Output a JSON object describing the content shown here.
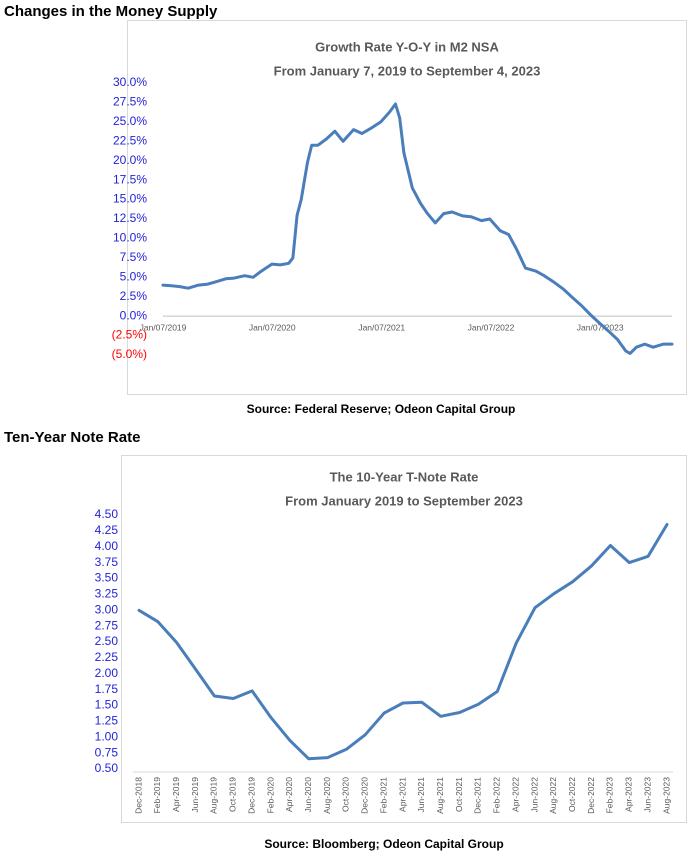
{
  "chart_data": [
    {
      "type": "line",
      "heading": "Changes in the Money Supply",
      "title": "Growth Rate Y-O-Y in M2 NSA",
      "subtitle": "From January 7, 2019 to September 4, 2023",
      "source": "Source: Federal Reserve; Odeon Capital Group",
      "color": "#4a7ebb",
      "tick_color": "#2323d8",
      "negative_tick_color": "#ff0000",
      "x": [
        "2019-01-07",
        "2019-02-04",
        "2019-03-04",
        "2019-04-01",
        "2019-05-06",
        "2019-06-03",
        "2019-07-01",
        "2019-08-05",
        "2019-09-02",
        "2019-10-07",
        "2019-11-04",
        "2019-12-02",
        "2020-01-06",
        "2020-02-03",
        "2020-03-02",
        "2020-03-16",
        "2020-03-30",
        "2020-04-13",
        "2020-05-04",
        "2020-05-18",
        "2020-06-08",
        "2020-07-06",
        "2020-08-03",
        "2020-08-31",
        "2020-10-05",
        "2020-11-02",
        "2020-12-07",
        "2021-01-04",
        "2021-02-01",
        "2021-02-22",
        "2021-03-08",
        "2021-03-22",
        "2021-04-19",
        "2021-05-17",
        "2021-06-07",
        "2021-07-05",
        "2021-08-02",
        "2021-08-30",
        "2021-10-04",
        "2021-11-01",
        "2021-12-06",
        "2022-01-03",
        "2022-02-07",
        "2022-03-07",
        "2022-04-04",
        "2022-05-02",
        "2022-06-06",
        "2022-07-04",
        "2022-08-01",
        "2022-09-05",
        "2022-10-03",
        "2022-11-07",
        "2022-12-05",
        "2023-01-02",
        "2023-02-06",
        "2023-03-06",
        "2023-04-03",
        "2023-04-17",
        "2023-05-08",
        "2023-06-05",
        "2023-07-03",
        "2023-08-07",
        "2023-09-04"
      ],
      "values": [
        4.0,
        3.9,
        3.8,
        3.6,
        4.0,
        4.1,
        4.4,
        4.8,
        4.9,
        5.2,
        5.0,
        5.8,
        6.7,
        6.6,
        6.8,
        7.5,
        13.0,
        15.0,
        19.8,
        22.0,
        22.0,
        22.8,
        23.8,
        22.5,
        24.0,
        23.5,
        24.3,
        25.0,
        26.2,
        27.3,
        25.5,
        21.0,
        16.5,
        14.5,
        13.3,
        12.0,
        13.2,
        13.4,
        12.9,
        12.8,
        12.3,
        12.5,
        11.0,
        10.5,
        8.5,
        6.2,
        5.8,
        5.2,
        4.5,
        3.5,
        2.5,
        1.3,
        0.2,
        -0.8,
        -2.0,
        -3.0,
        -4.5,
        -4.8,
        -4.0,
        -3.6,
        -4.0,
        -3.6,
        -3.6
      ],
      "xlim": [
        "2019-01-07",
        "2023-09-04"
      ],
      "xticks": [
        {
          "value": "2019-01-07",
          "label": "Jan/07/2019"
        },
        {
          "value": "2020-01-07",
          "label": "Jan/07/2020"
        },
        {
          "value": "2021-01-07",
          "label": "Jan/07/2021"
        },
        {
          "value": "2022-01-07",
          "label": "Jan/07/2022"
        },
        {
          "value": "2023-01-07",
          "label": "Jan/07/2023"
        }
      ],
      "ylim": [
        -5,
        30
      ],
      "yticks": [
        {
          "value": 30,
          "label": "30.0%"
        },
        {
          "value": 27.5,
          "label": "27.5%"
        },
        {
          "value": 25,
          "label": "25.0%"
        },
        {
          "value": 22.5,
          "label": "22.5%"
        },
        {
          "value": 20,
          "label": "20.0%"
        },
        {
          "value": 17.5,
          "label": "17.5%"
        },
        {
          "value": 15,
          "label": "15.0%"
        },
        {
          "value": 12.5,
          "label": "12.5%"
        },
        {
          "value": 10,
          "label": "10.0%"
        },
        {
          "value": 7.5,
          "label": "7.5%"
        },
        {
          "value": 5,
          "label": "5.0%"
        },
        {
          "value": 2.5,
          "label": "2.5%"
        },
        {
          "value": 0,
          "label": "0.0%"
        },
        {
          "value": -2.5,
          "label": "(2.5%)"
        },
        {
          "value": -5,
          "label": "(5.0%)"
        }
      ]
    },
    {
      "type": "line",
      "heading": "Ten-Year Note Rate",
      "title": "The 10-Year T-Note Rate",
      "subtitle": "From January 2019 to September 2023",
      "source": "Source: Bloomberg; Odeon Capital Group",
      "color": "#4a7ebb",
      "tick_color": "#2323d8",
      "categories": [
        "Dec-2018",
        "Feb-2019",
        "Apr-2019",
        "Jun-2019",
        "Aug-2019",
        "Oct-2019",
        "Dec-2019",
        "Feb-2020",
        "Apr-2020",
        "Jun-2020",
        "Aug-2020",
        "Oct-2020",
        "Dec-2020",
        "Feb-2021",
        "Apr-2021",
        "Jun-2021",
        "Aug-2021",
        "Oct-2021",
        "Dec-2021",
        "Feb-2022",
        "Apr-2022",
        "Jun-2022",
        "Aug-2022",
        "Oct-2022",
        "Dec-2022",
        "Feb-2023",
        "Apr-2023",
        "Jun-2023",
        "Aug-2023"
      ],
      "values": [
        3.0,
        2.82,
        2.49,
        2.07,
        1.65,
        1.61,
        1.73,
        1.31,
        0.95,
        0.66,
        0.68,
        0.81,
        1.04,
        1.38,
        1.54,
        1.55,
        1.33,
        1.39,
        1.52,
        1.72,
        2.48,
        3.04,
        3.26,
        3.45,
        3.7,
        4.02,
        3.75,
        3.85,
        4.35
      ],
      "ylim": [
        0.5,
        4.5
      ],
      "yticks": [
        {
          "value": 4.5,
          "label": "4.50"
        },
        {
          "value": 4.25,
          "label": "4.25"
        },
        {
          "value": 4,
          "label": "4.00"
        },
        {
          "value": 3.75,
          "label": "3.75"
        },
        {
          "value": 3.5,
          "label": "3.50"
        },
        {
          "value": 3.25,
          "label": "3.25"
        },
        {
          "value": 3,
          "label": "3.00"
        },
        {
          "value": 2.75,
          "label": "2.75"
        },
        {
          "value": 2.5,
          "label": "2.50"
        },
        {
          "value": 2.25,
          "label": "2.25"
        },
        {
          "value": 2,
          "label": "2.00"
        },
        {
          "value": 1.75,
          "label": "1.75"
        },
        {
          "value": 1.5,
          "label": "1.50"
        },
        {
          "value": 1.25,
          "label": "1.25"
        },
        {
          "value": 1,
          "label": "1.00"
        },
        {
          "value": 0.75,
          "label": "0.75"
        },
        {
          "value": 0.5,
          "label": "0.50"
        }
      ]
    }
  ]
}
